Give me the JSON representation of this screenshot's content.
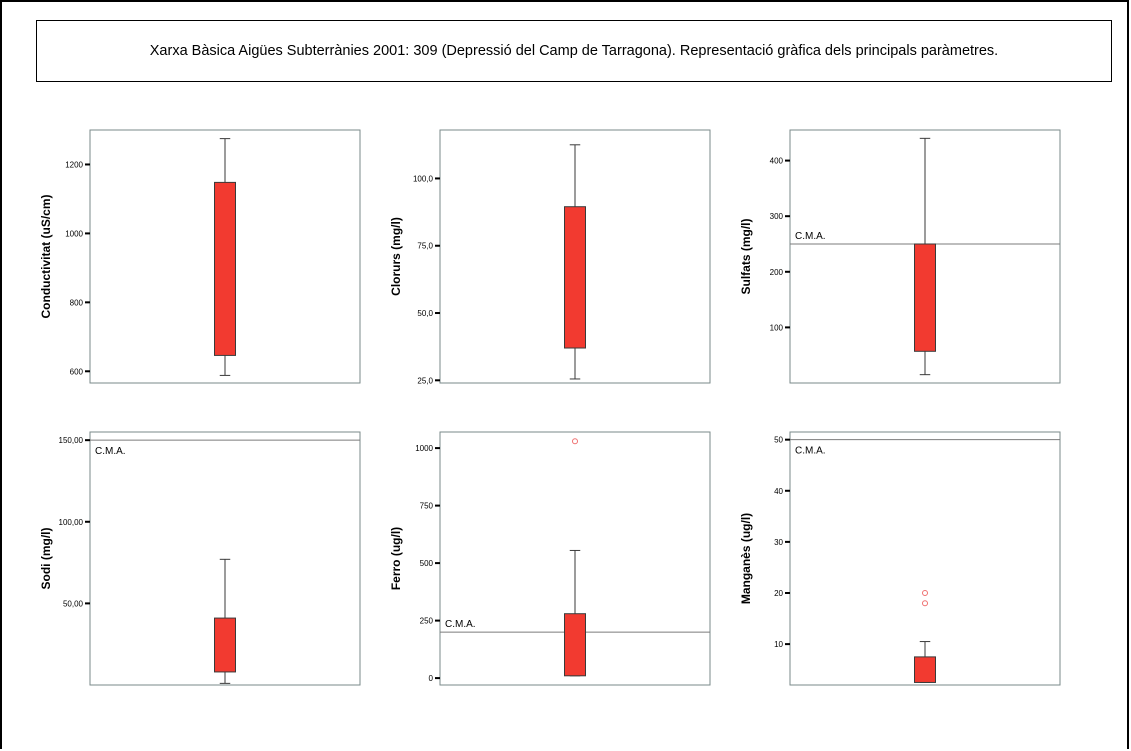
{
  "title": "Xarxa Bàsica Aigües Subterrànies 2001: 309 (Depressió del Camp de Tarragona). Representació gràfica dels principals paràmetres.",
  "colors": {
    "box_fill": "#f23a30",
    "box_stroke": "#3a3a3a",
    "frame": "#7a8a8a",
    "cma_line": "#7b7b7b",
    "outlier": "#ef7070"
  },
  "chart_data": [
    {
      "type": "box",
      "ylabel": "Conductivitat (uS/cm)",
      "ylim": [
        566,
        1300
      ],
      "ticks": [
        {
          "value": 600,
          "label": "600"
        },
        {
          "value": 800,
          "label": "800"
        },
        {
          "value": 1000,
          "label": "1000"
        },
        {
          "value": 1200,
          "label": "1200"
        }
      ],
      "box": {
        "whisker_low": 588,
        "q1": 646,
        "q3": 1148,
        "whisker_high": 1275
      },
      "outliers": [],
      "cma": null,
      "cma_label": ""
    },
    {
      "type": "box",
      "ylabel": "Clorurs (mg/l)",
      "ylim": [
        24,
        118
      ],
      "ticks": [
        {
          "value": 25,
          "label": "25,0"
        },
        {
          "value": 50,
          "label": "50,0"
        },
        {
          "value": 75,
          "label": "75,0"
        },
        {
          "value": 100,
          "label": "100,0"
        }
      ],
      "box": {
        "whisker_low": 25.5,
        "q1": 37,
        "q3": 89.5,
        "whisker_high": 112.5
      },
      "outliers": [],
      "cma": null,
      "cma_label": ""
    },
    {
      "type": "box",
      "ylabel": "Sulfats (mg/l)",
      "ylim": [
        0,
        455
      ],
      "ticks": [
        {
          "value": 100,
          "label": "100"
        },
        {
          "value": 200,
          "label": "200"
        },
        {
          "value": 300,
          "label": "300"
        },
        {
          "value": 400,
          "label": "400"
        }
      ],
      "box": {
        "whisker_low": 15,
        "q1": 57,
        "q3": 250,
        "whisker_high": 440
      },
      "outliers": [],
      "cma": 250,
      "cma_label": "C.M.A."
    },
    {
      "type": "box",
      "ylabel": "Sodi (mg/l)",
      "ylim": [
        0,
        155
      ],
      "ticks": [
        {
          "value": 50,
          "label": "50,00"
        },
        {
          "value": 100,
          "label": "100,00"
        },
        {
          "value": 150,
          "label": "150,00"
        }
      ],
      "box": {
        "whisker_low": 1,
        "q1": 8,
        "q3": 41,
        "whisker_high": 77
      },
      "outliers": [],
      "cma": 150,
      "cma_label": "C.M.A."
    },
    {
      "type": "box",
      "ylabel": "Ferro (ug/l)",
      "ylim": [
        -30,
        1070
      ],
      "ticks": [
        {
          "value": 0,
          "label": "0"
        },
        {
          "value": 250,
          "label": "250"
        },
        {
          "value": 500,
          "label": "500"
        },
        {
          "value": 750,
          "label": "750"
        },
        {
          "value": 1000,
          "label": "1000"
        }
      ],
      "box": {
        "whisker_low": 10,
        "q1": 10,
        "q3": 280,
        "whisker_high": 555
      },
      "outliers": [
        1030
      ],
      "cma": 200,
      "cma_label": "C.M.A."
    },
    {
      "type": "box",
      "ylabel": "Manganès (ug/l)",
      "ylim": [
        2,
        51.5
      ],
      "ticks": [
        {
          "value": 10,
          "label": "10"
        },
        {
          "value": 20,
          "label": "20"
        },
        {
          "value": 30,
          "label": "30"
        },
        {
          "value": 40,
          "label": "40"
        },
        {
          "value": 50,
          "label": "50"
        }
      ],
      "box": {
        "whisker_low": 2.5,
        "q1": 2.5,
        "q3": 7.5,
        "whisker_high": 10.5
      },
      "outliers": [
        18,
        20
      ],
      "cma": 50,
      "cma_label": "C.M.A."
    }
  ]
}
